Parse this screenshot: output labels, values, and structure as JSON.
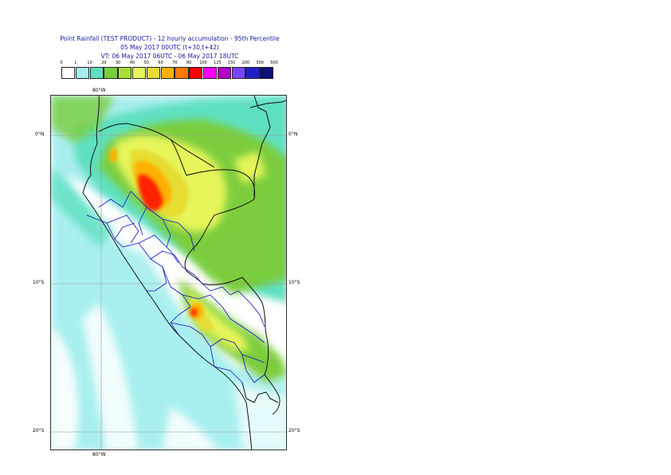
{
  "titles": {
    "line1": "Point Rainfall (TEST PRODUCT) - 12 hourly accumulation - 95th Percentile",
    "line2": "05 May 2017 00UTC (t+30,t+42)",
    "line3": "VT: 06 May 2017 06UTC - 06 May 2017 18UTC"
  },
  "legend": {
    "thresholds": [
      "0",
      "1",
      "10",
      "20",
      "30",
      "40",
      "50",
      "60",
      "70",
      "80",
      "100",
      "125",
      "150",
      "200",
      "300",
      "500"
    ],
    "colors": [
      "#ffffff",
      "#a8eeee",
      "#5fe0c0",
      "#7ccd3c",
      "#a7e035",
      "#e6f55a",
      "#e6dc32",
      "#ffb000",
      "#ff7a00",
      "#ff0000",
      "#ff00ff",
      "#b400c8",
      "#7846ff",
      "#2020c8",
      "#10107a"
    ]
  },
  "map": {
    "lat_labels": {
      "left": [
        "0°N",
        "10°S",
        "20°S"
      ],
      "right": [
        "0°N",
        "10°S",
        "20°S"
      ]
    },
    "lon_labels": {
      "top": "80°W",
      "bottom": "80°W"
    }
  }
}
